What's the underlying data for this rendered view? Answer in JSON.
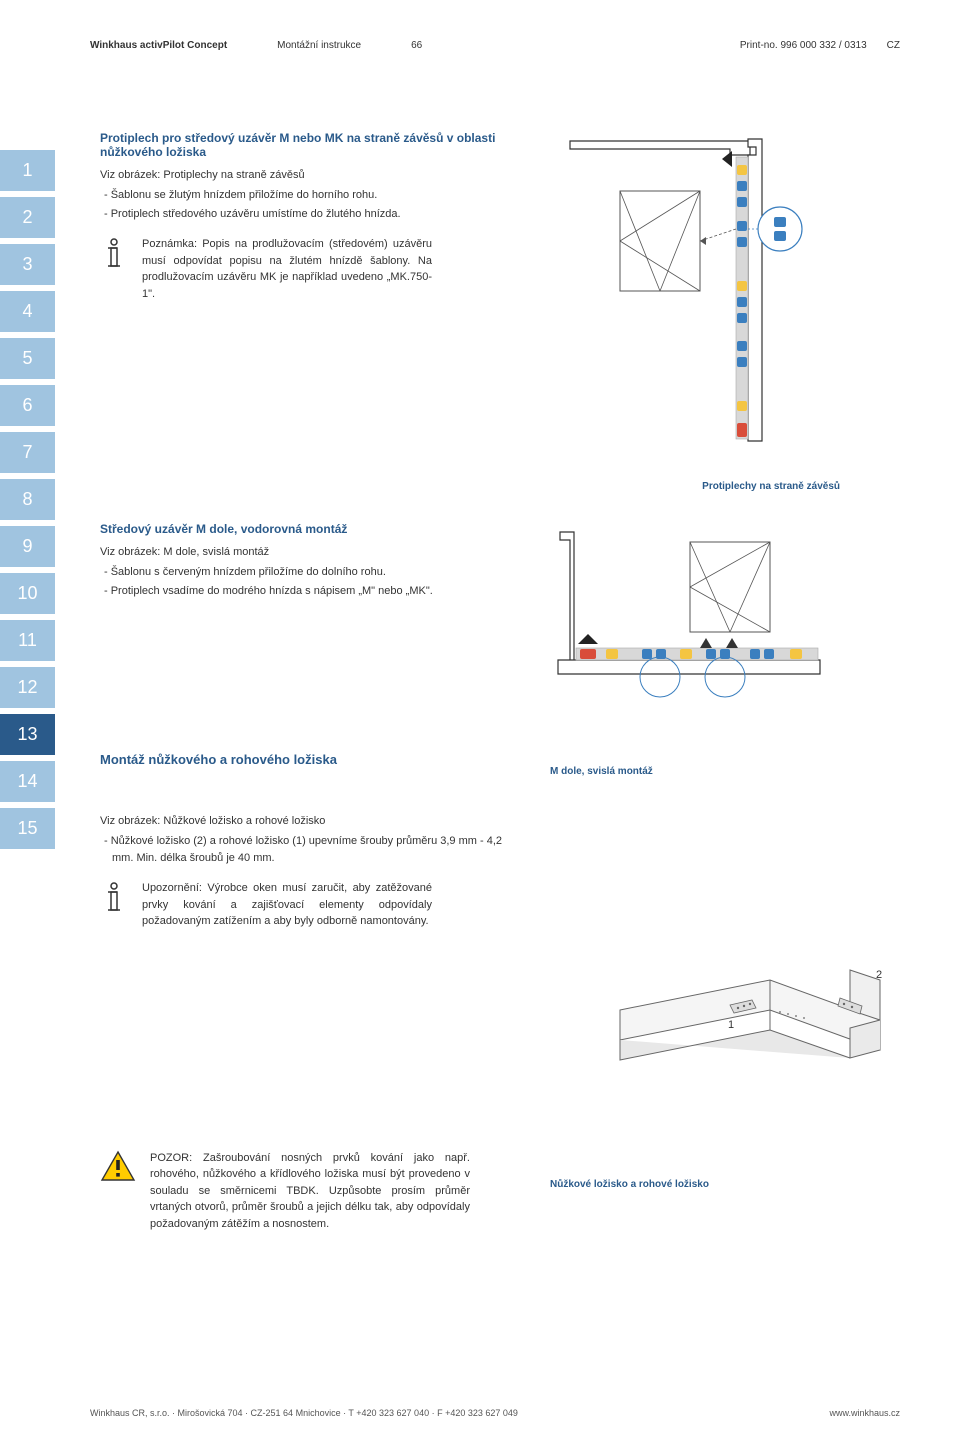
{
  "header": {
    "brand": "Winkhaus activPilot Concept",
    "doc_type": "Montážní instrukce",
    "page_num": "66",
    "print_no": "Print-no. 996 000 332 / 0313",
    "lang": "CZ"
  },
  "tabs": [
    "1",
    "2",
    "3",
    "4",
    "5",
    "6",
    "7",
    "8",
    "9",
    "10",
    "11",
    "12",
    "13",
    "14",
    "15"
  ],
  "active_tab": "13",
  "section1": {
    "title": "Protiplech pro středový uzávěr M nebo MK na straně závěsů v oblasti nůžkového ložiska",
    "viz": "Viz obrázek: Protiplechy na straně závěsů",
    "bullets": [
      "- Šablonu se žlutým hnízdem přiložíme do horního rohu.",
      "- Protiplech středového uzávěru umístíme do žlutého hnízda."
    ],
    "note": "Poznámka: Popis na prodlužovacím (středovém) uzávěru musí odpovídat popisu na žlutém hnízdě šablony. Na prodlužovacím uzávěru MK je například uvedeno „MK.750-1\"."
  },
  "fig1_caption": "Protiplechy na straně závěsů",
  "section2": {
    "title": "Středový uzávěr M dole, vodorovná montáž",
    "viz": "Viz obrázek: M dole, svislá montáž",
    "bullets": [
      "- Šablonu s červeným hnízdem přiložíme do dolního rohu.",
      "- Protiplech vsadíme do modrého hnízda s nápisem „M\" nebo „MK\"."
    ]
  },
  "section3": {
    "title": "Montáž nůžkového a rohového ložiska",
    "fig2_caption": "M dole, svislá montáž",
    "viz": "Viz obrázek: Nůžkové ložisko a rohové ložisko",
    "bullets": [
      "- Nůžkové ložisko (2) a rohové ložisko (1) upevníme šrouby průměru 3,9 mm - 4,2 mm. Min. délka šroubů je 40 mm."
    ],
    "note": "Upozornění: Výrobce oken musí zaručit, aby zatěžované prvky kování a zajišťovací elementy odpovídaly požadovaným zatížením a aby byly odborně namontovány."
  },
  "warning": {
    "text": "POZOR: Zašroubování nosných prvků kování jako např. rohového, nůžkového a křídlového ložiska musí být provedeno v souladu se směrnicemi TBDK. Uzpůsobte prosím průměr vrtaných otvorů, průměr šroubů a jejich délku tak, aby odpovídaly požadovaným zátěžím a nosnostem."
  },
  "fig3_caption": "Nůžkové ložisko a rohové ložisko",
  "fig3_labels": {
    "one": "1",
    "two": "2"
  },
  "footer": {
    "company": "Winkhaus CR, s.r.o. · Mirošovická 704 · CZ-251 64 Mnichovice · T +420 323 627 040 · F +420 323 627 049",
    "url": "www.winkhaus.cz"
  },
  "colors": {
    "blue": "#2a5a8a",
    "light_blue": "#a0c4e0",
    "stud_blue": "#3b7fbf",
    "stud_yellow": "#f4c542",
    "stud_red": "#d94d3a",
    "rail_gray": "#d0d0d0",
    "frame_gray": "#999",
    "warning_yellow": "#ffcc00"
  }
}
